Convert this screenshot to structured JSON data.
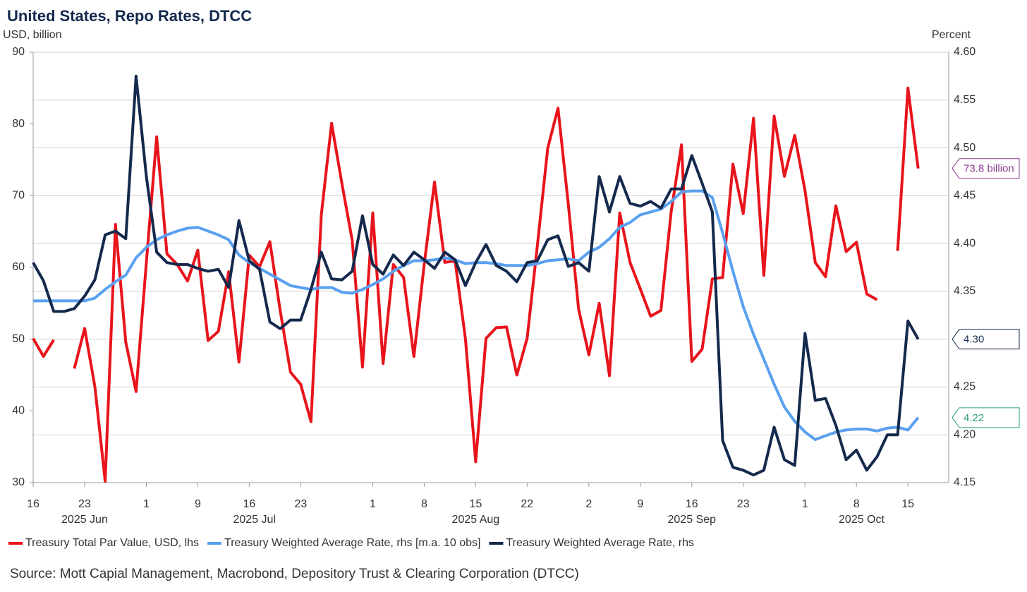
{
  "chart_data": {
    "type": "line",
    "title": "United States, Repo Rates, DTCC",
    "y_label": "USD, billion",
    "y2_label": "Percent",
    "source": "Source: Mott Capial Management, Macrobond, Depository Trust & Clearing Corporation (DTCC)",
    "categories": [
      "16",
      null,
      null,
      null,
      null,
      "23",
      null,
      null,
      null,
      null,
      null,
      "1",
      null,
      null,
      null,
      null,
      "9",
      null,
      null,
      null,
      null,
      "16",
      null,
      null,
      null,
      null,
      "23",
      null,
      null,
      null,
      null,
      null,
      null,
      "1",
      null,
      null,
      null,
      null,
      "8",
      null,
      null,
      null,
      null,
      "15",
      null,
      null,
      null,
      null,
      "22",
      null,
      null,
      null,
      null,
      null,
      "2",
      null,
      null,
      null,
      null,
      "9",
      null,
      null,
      null,
      null,
      "16",
      null,
      null,
      null,
      null,
      "23",
      null,
      null,
      null,
      null,
      null,
      "1",
      null,
      null,
      null,
      null,
      "8",
      null,
      null,
      null,
      null,
      "15",
      null
    ],
    "month_labels": [
      "2025 Jun",
      "2025 Jul",
      "2025 Aug",
      "2025 Sep",
      "2025 Oct"
    ],
    "ylim": [
      30,
      90
    ],
    "yticks": [
      30,
      40,
      50,
      60,
      70,
      80,
      90
    ],
    "y2lim": [
      4.15,
      4.6
    ],
    "y2ticks": [
      4.15,
      {
        "value": 4.2,
        "label": "4.20"
      },
      4.25,
      {
        "value": 4.3,
        "label": "4.30"
      },
      4.35,
      {
        "value": 4.4,
        "label": "4.40"
      },
      4.45,
      {
        "value": 4.5,
        "label": "4.50"
      },
      4.55,
      {
        "value": 4.6,
        "label": "4.60"
      }
    ],
    "grid": true,
    "legend": "bottom",
    "series": [
      {
        "name": "Treasury Total Par Value, USD, lhs",
        "color": "#e8141c",
        "axis": "y",
        "label_color": "#8a3a8f",
        "values": [
          50.1,
          47.6,
          49.9,
          null,
          45.9,
          51.5,
          43.4,
          30.2,
          66.0,
          49.6,
          42.7,
          60.7,
          78.2,
          61.9,
          60.4,
          58.1,
          62.4,
          49.8,
          51.1,
          59.4,
          46.8,
          61.7,
          60.1,
          63.6,
          54.0,
          45.4,
          43.7,
          38.5,
          67.3,
          80.1,
          71.7,
          63.8,
          46.1,
          67.6,
          46.6,
          60.4,
          58.6,
          47.6,
          60.4,
          71.9,
          60.7,
          60.9,
          50.1,
          32.9,
          50.1,
          51.6,
          51.7,
          45.0,
          50.1,
          63.1,
          76.6,
          82.2,
          68.8,
          54.2,
          47.8,
          55.0,
          44.9,
          67.6,
          60.7,
          57.0,
          53.2,
          54.0,
          67.8,
          77.1,
          46.9,
          48.6,
          58.4,
          58.6,
          74.4,
          67.5,
          80.8,
          58.9,
          81.1,
          72.7,
          78.4,
          70.7,
          60.7,
          58.7,
          68.6,
          62.2,
          63.5,
          56.3,
          55.5,
          null,
          62.3,
          85.0,
          73.8
        ],
        "value_labels": [
          null,
          null,
          null,
          null,
          null,
          null,
          null,
          null,
          null,
          null,
          null,
          null,
          null,
          null,
          null,
          null,
          null,
          null,
          null,
          null,
          null,
          null,
          null,
          null,
          null,
          null,
          null,
          null,
          null,
          null,
          null,
          null,
          null,
          null,
          null,
          null,
          null,
          null,
          null,
          null,
          null,
          null,
          null,
          null,
          null,
          null,
          null,
          null,
          null,
          null,
          null,
          null,
          null,
          null,
          null,
          null,
          null,
          null,
          null,
          null,
          null,
          null,
          null,
          null,
          null,
          null,
          null,
          null,
          null,
          null,
          null,
          null,
          null,
          null,
          null,
          null,
          null,
          null,
          null,
          null,
          null,
          null,
          null,
          null,
          null,
          null,
          "73.8 billion"
        ]
      },
      {
        "name": "Treasury Weighted Average Rate, rhs [m.a. 10 obs]",
        "color": "#5aa0f0",
        "axis": "y2",
        "label_color": "#2e9e7a",
        "values": [
          4.34,
          4.34,
          4.34,
          4.34,
          4.34,
          4.34,
          4.343,
          4.352,
          4.36,
          4.367,
          4.385,
          4.396,
          4.404,
          4.409,
          4.413,
          4.416,
          4.417,
          4.413,
          4.409,
          4.404,
          4.388,
          4.38,
          4.374,
          4.368,
          4.362,
          4.356,
          4.354,
          4.352,
          4.354,
          4.354,
          4.349,
          4.348,
          4.352,
          4.357,
          4.363,
          4.371,
          4.377,
          4.382,
          4.382,
          4.383,
          4.385,
          4.383,
          4.379,
          4.38,
          4.38,
          4.379,
          4.377,
          4.377,
          4.377,
          4.379,
          4.382,
          4.383,
          4.384,
          4.382,
          4.391,
          4.396,
          4.405,
          4.417,
          4.422,
          4.43,
          4.433,
          4.436,
          4.444,
          4.454,
          4.455,
          4.455,
          4.448,
          4.411,
          4.371,
          4.334,
          4.305,
          4.279,
          4.253,
          4.229,
          4.214,
          4.203,
          4.195,
          4.199,
          4.203,
          4.205,
          4.206,
          4.206,
          4.204,
          4.207,
          4.208,
          4.205,
          4.218
        ],
        "value_labels": [
          null,
          null,
          null,
          null,
          null,
          null,
          null,
          null,
          null,
          null,
          null,
          null,
          null,
          null,
          null,
          null,
          null,
          null,
          null,
          null,
          null,
          null,
          null,
          null,
          null,
          null,
          null,
          null,
          null,
          null,
          null,
          null,
          null,
          null,
          null,
          null,
          null,
          null,
          null,
          null,
          null,
          null,
          null,
          null,
          null,
          null,
          null,
          null,
          null,
          null,
          null,
          null,
          null,
          null,
          null,
          null,
          null,
          null,
          null,
          null,
          null,
          null,
          null,
          null,
          null,
          null,
          null,
          null,
          null,
          null,
          null,
          null,
          null,
          null,
          null,
          null,
          null,
          null,
          null,
          null,
          null,
          null,
          null,
          null,
          null,
          null,
          "4.22"
        ]
      },
      {
        "name": "Treasury Weighted Average Rate, rhs",
        "color": "#14294d",
        "axis": "y2",
        "label_color": "#14294d",
        "values": [
          4.38,
          4.361,
          4.329,
          4.329,
          4.332,
          4.345,
          4.362,
          4.409,
          4.413,
          4.405,
          4.575,
          4.47,
          4.391,
          4.38,
          4.378,
          4.378,
          4.374,
          4.371,
          4.373,
          4.354,
          4.424,
          4.382,
          4.373,
          4.318,
          4.311,
          4.32,
          4.32,
          4.352,
          4.391,
          4.363,
          4.362,
          4.371,
          4.429,
          4.378,
          4.368,
          4.388,
          4.377,
          4.391,
          4.383,
          4.374,
          4.391,
          4.383,
          4.356,
          4.38,
          4.399,
          4.377,
          4.371,
          4.36,
          4.38,
          4.382,
          4.404,
          4.408,
          4.376,
          4.38,
          4.371,
          4.47,
          4.433,
          4.47,
          4.442,
          4.439,
          4.444,
          4.437,
          4.457,
          4.457,
          4.492,
          4.463,
          4.433,
          4.194,
          4.166,
          4.163,
          4.158,
          4.163,
          4.208,
          4.174,
          4.168,
          4.306,
          4.236,
          4.238,
          4.21,
          4.174,
          4.184,
          4.163,
          4.177,
          4.2,
          4.2,
          4.319,
          4.3
        ],
        "value_labels": [
          null,
          null,
          null,
          null,
          null,
          null,
          null,
          null,
          null,
          null,
          null,
          null,
          null,
          null,
          null,
          null,
          null,
          null,
          null,
          null,
          null,
          null,
          null,
          null,
          null,
          null,
          null,
          null,
          null,
          null,
          null,
          null,
          null,
          null,
          null,
          null,
          null,
          null,
          null,
          null,
          null,
          null,
          null,
          null,
          null,
          null,
          null,
          null,
          null,
          null,
          null,
          null,
          null,
          null,
          null,
          null,
          null,
          null,
          null,
          null,
          null,
          null,
          null,
          null,
          null,
          null,
          null,
          null,
          null,
          null,
          null,
          null,
          null,
          null,
          null,
          null,
          null,
          null,
          null,
          null,
          null,
          null,
          null,
          null,
          null,
          null,
          "4.30"
        ]
      }
    ]
  }
}
